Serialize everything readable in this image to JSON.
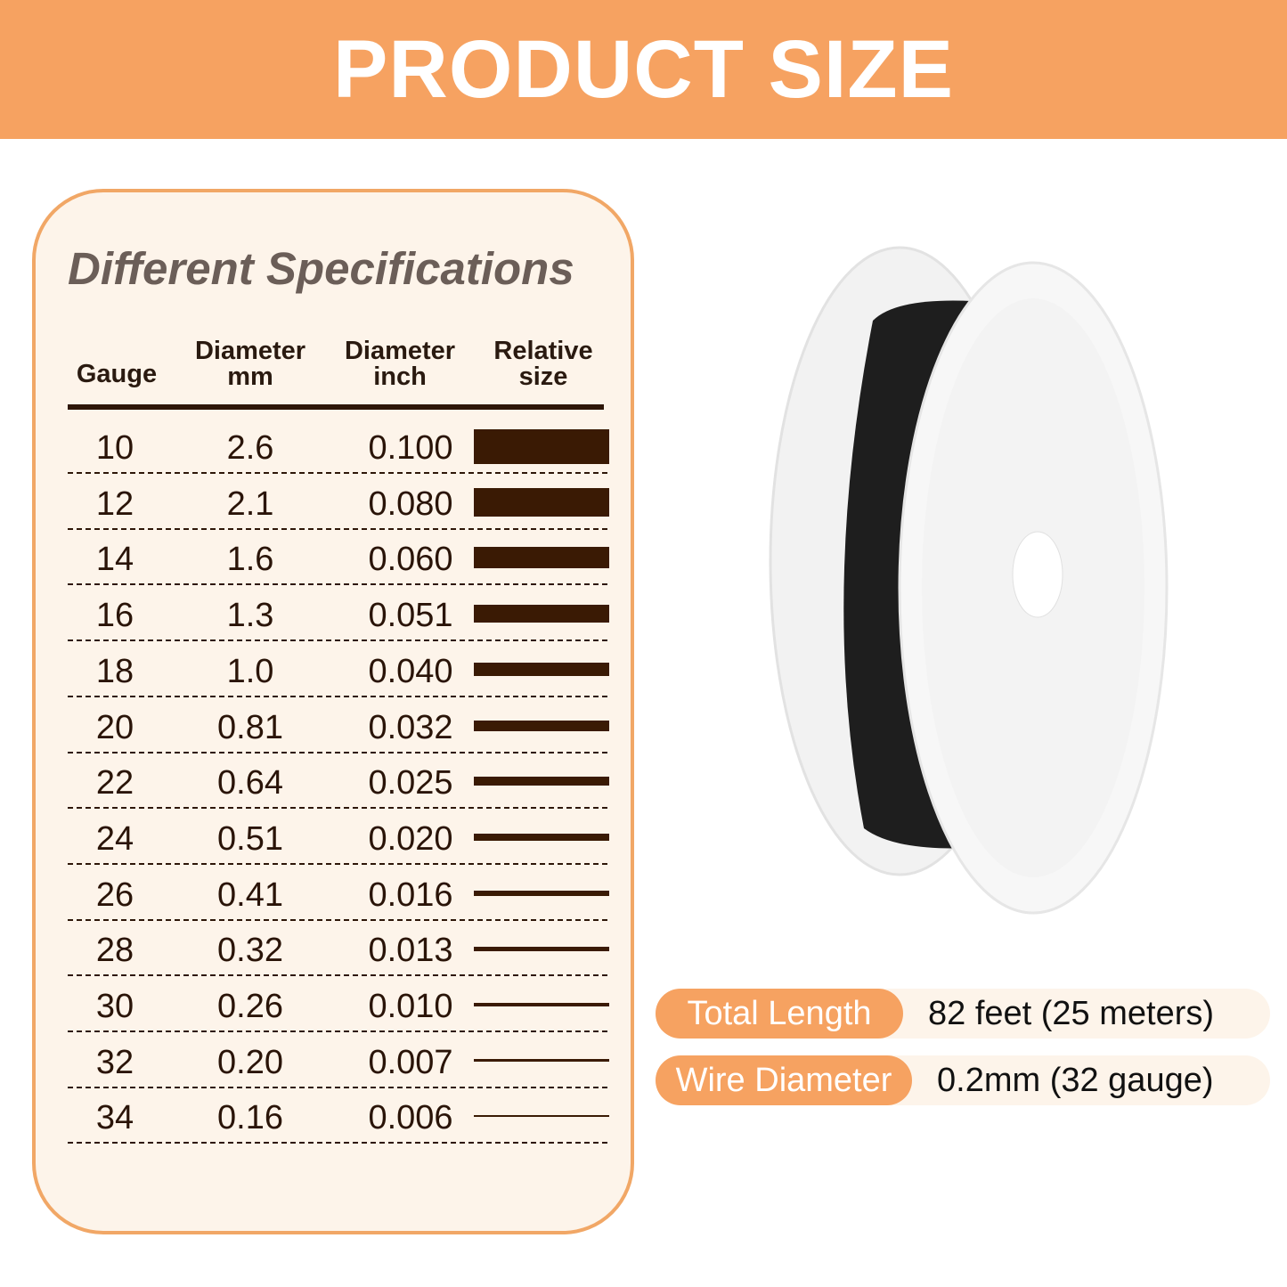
{
  "banner": {
    "title": "PRODUCT SIZE",
    "color": "#f6a261"
  },
  "table": {
    "title": "Different Specifications",
    "headers": {
      "gauge": "Gauge",
      "mm_1": "Diameter",
      "mm_2": "mm",
      "inch_1": "Diameter",
      "inch_2": "inch",
      "rel_1": "Relative",
      "rel_2": "size"
    },
    "rows": [
      {
        "gauge": "10",
        "mm": "2.6",
        "inch": "0.100"
      },
      {
        "gauge": "12",
        "mm": "2.1",
        "inch": "0.080"
      },
      {
        "gauge": "14",
        "mm": "1.6",
        "inch": "0.060"
      },
      {
        "gauge": "16",
        "mm": "1.3",
        "inch": "0.051"
      },
      {
        "gauge": "18",
        "mm": "1.0",
        "inch": "0.040"
      },
      {
        "gauge": "20",
        "mm": "0.81",
        "inch": "0.032"
      },
      {
        "gauge": "22",
        "mm": "0.64",
        "inch": "0.025"
      },
      {
        "gauge": "24",
        "mm": "0.51",
        "inch": "0.020"
      },
      {
        "gauge": "26",
        "mm": "0.41",
        "inch": "0.016"
      },
      {
        "gauge": "28",
        "mm": "0.32",
        "inch": "0.013"
      },
      {
        "gauge": "30",
        "mm": "0.26",
        "inch": "0.010"
      },
      {
        "gauge": "32",
        "mm": "0.20",
        "inch": "0.007"
      },
      {
        "gauge": "34",
        "mm": "0.16",
        "inch": "0.006"
      }
    ]
  },
  "specs": [
    {
      "label": "Total Length",
      "value": "82 feet (25 meters)"
    },
    {
      "label": "Wire Diameter",
      "value": "0.2mm (32 gauge)"
    }
  ]
}
